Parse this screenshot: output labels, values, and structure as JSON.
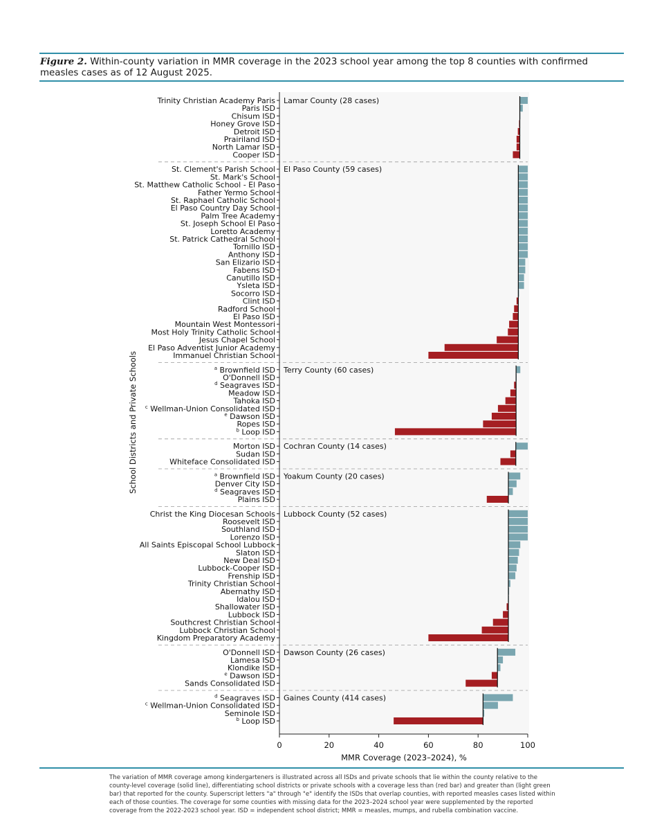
{
  "caption": {
    "label": "Figure 2.",
    "text": "Within-county variation in MMR coverage in the 2023 school year among the top 8 counties with confirmed measles cases as of 12 August 2025."
  },
  "footnote": "The variation of MMR coverage among kindergarteners is illustrated across all ISDs and private schools that lie within the county relative to the county-level coverage (solid line), differentiating school districts or private schools with a coverage less than (red bar) and greater than (light green bar) that reported for the county. Superscript letters \"a\" through \"e\" identify the ISDs that overlap counties, with reported measles cases listed within each of those counties. The coverage for some counties with missing data for the 2023–2024 school year were supplemented by the reported coverage from the 2022-2023 school year. ISD = independent school district; MMR = measles, mumps, and rubella combination vaccine.",
  "colors": {
    "above": "#7aa6b0",
    "below": "#a51e22",
    "county_line": "#111111",
    "separator": "#9a9a9a"
  },
  "chart_data": {
    "type": "bar",
    "orientation": "horizontal",
    "xlabel": "MMR Coverage (2023–2024), %",
    "ylabel": "School Districts and Private Schools",
    "xlim": [
      0,
      100
    ],
    "xticks": [
      0,
      20,
      40,
      60,
      80,
      100
    ],
    "groups": [
      {
        "county": "Lamar County (28 cases)",
        "county_coverage": 96.8,
        "rows": [
          {
            "label": "Trinity Christian Academy Paris",
            "value": 100
          },
          {
            "label": "Paris ISD",
            "value": 98
          },
          {
            "label": "Chisum ISD",
            "value": 97
          },
          {
            "label": "Honey Grove ISD",
            "value": 96.5
          },
          {
            "label": "Detroit ISD",
            "value": 96
          },
          {
            "label": "Prairiland ISD",
            "value": 95.5
          },
          {
            "label": "North Lamar ISD",
            "value": 95.5
          },
          {
            "label": "Cooper ISD",
            "value": 94
          }
        ]
      },
      {
        "county": "El Paso County (59 cases)",
        "county_coverage": 96.2,
        "rows": [
          {
            "label": "St. Clement's Parish School",
            "value": 100
          },
          {
            "label": "St. Mark's School",
            "value": 100
          },
          {
            "label": "St. Matthew Catholic School - El Paso",
            "value": 100
          },
          {
            "label": "Father Yermo School",
            "value": 100
          },
          {
            "label": "St. Raphael Catholic School",
            "value": 100
          },
          {
            "label": "El Paso Country Day School",
            "value": 100
          },
          {
            "label": "Palm Tree Academy",
            "value": 100
          },
          {
            "label": "St. Joseph School El Paso",
            "value": 100
          },
          {
            "label": "Loretto Academy",
            "value": 100
          },
          {
            "label": "St. Patrick Cathedral School",
            "value": 100
          },
          {
            "label": "Tornillo ISD",
            "value": 100
          },
          {
            "label": "Anthony ISD",
            "value": 100
          },
          {
            "label": "San Elizario ISD",
            "value": 99
          },
          {
            "label": "Fabens ISD",
            "value": 99
          },
          {
            "label": "Canutillo ISD",
            "value": 98.5
          },
          {
            "label": "Ysleta ISD",
            "value": 98.5
          },
          {
            "label": "Socorro ISD",
            "value": 96.5
          },
          {
            "label": "Clint ISD",
            "value": 95.5
          },
          {
            "label": "Radford School",
            "value": 94.5
          },
          {
            "label": "El Paso ISD",
            "value": 94
          },
          {
            "label": "Mountain West Montessori",
            "value": 92.5
          },
          {
            "label": "Most Holy Trinity Catholic School",
            "value": 92
          },
          {
            "label": "Jesus Chapel School",
            "value": 87.5
          },
          {
            "label": "El Paso Adventist Junior Academy",
            "value": 66.5
          },
          {
            "label": "Immanuel Christian School",
            "value": 60
          }
        ]
      },
      {
        "county": "Terry County (60 cases)",
        "county_coverage": 95.3,
        "rows": [
          {
            "label": "Brownfield ISD",
            "sup": "a",
            "value": 97
          },
          {
            "label": "O'Donnell ISD",
            "value": 95.5
          },
          {
            "label": "Seagraves ISD",
            "sup": "d",
            "value": 94.5
          },
          {
            "label": "Meadow ISD",
            "value": 93
          },
          {
            "label": "Tahoka ISD",
            "value": 91
          },
          {
            "label": "Wellman-Union Consolidated ISD",
            "sup": "c",
            "value": 88
          },
          {
            "label": "Dawson ISD",
            "sup": "e",
            "value": 85.5
          },
          {
            "label": "Ropes ISD",
            "value": 82
          },
          {
            "label": "Loop ISD",
            "sup": "b",
            "value": 46.5
          }
        ]
      },
      {
        "county": "Cochran County (14 cases)",
        "county_coverage": 95.2,
        "rows": [
          {
            "label": "Morton ISD",
            "value": 100
          },
          {
            "label": "Sudan ISD",
            "value": 93
          },
          {
            "label": "Whiteface Consolidated ISD",
            "value": 89
          }
        ]
      },
      {
        "county": "Yoakum County (20 cases)",
        "county_coverage": 92.2,
        "rows": [
          {
            "label": "Brownfield ISD",
            "sup": "a",
            "value": 97
          },
          {
            "label": "Denver City ISD",
            "value": 95.5
          },
          {
            "label": "Seagraves ISD",
            "sup": "d",
            "value": 94
          },
          {
            "label": "Plains ISD",
            "value": 83.5
          }
        ]
      },
      {
        "county": "Lubbock County (52 cases)",
        "county_coverage": 92.2,
        "rows": [
          {
            "label": "Christ the King Diocesan Schools",
            "value": 100
          },
          {
            "label": "Roosevelt ISD",
            "value": 100
          },
          {
            "label": "Southland ISD",
            "value": 100
          },
          {
            "label": "Lorenzo ISD",
            "value": 100
          },
          {
            "label": "All Saints Episcopal School Lubbock",
            "value": 97
          },
          {
            "label": "Slaton ISD",
            "value": 96.5
          },
          {
            "label": "New Deal ISD",
            "value": 96
          },
          {
            "label": "Lubbock-Cooper ISD",
            "value": 95.5
          },
          {
            "label": "Frenship ISD",
            "value": 95
          },
          {
            "label": "Trinity Christian School",
            "value": 93
          },
          {
            "label": "Abernathy ISD",
            "value": 92.5
          },
          {
            "label": "Idalou ISD",
            "value": 92.3
          },
          {
            "label": "Shallowater ISD",
            "value": 91.5
          },
          {
            "label": "Lubbock ISD",
            "value": 90
          },
          {
            "label": "Southcrest Christian School",
            "value": 86
          },
          {
            "label": "Lubbock Christian School",
            "value": 81.5
          },
          {
            "label": "Kingdom Preparatory Academy",
            "value": 60
          }
        ]
      },
      {
        "county": "Dawson County (26 cases)",
        "county_coverage": 87.8,
        "rows": [
          {
            "label": "O'Donnell ISD",
            "value": 95
          },
          {
            "label": "Lamesa ISD",
            "value": 90
          },
          {
            "label": "Klondike ISD",
            "value": 89
          },
          {
            "label": "Dawson ISD",
            "sup": "e",
            "value": 85.5
          },
          {
            "label": "Sands Consolidated ISD",
            "value": 75
          }
        ]
      },
      {
        "county": "Gaines County (414 cases)",
        "county_coverage": 82,
        "rows": [
          {
            "label": "Seagraves ISD",
            "sup": "d",
            "value": 94
          },
          {
            "label": "Wellman-Union Consolidated ISD",
            "sup": "c",
            "value": 88
          },
          {
            "label": "Seminole ISD",
            "value": 82.5
          },
          {
            "label": "Loop ISD",
            "sup": "b",
            "value": 46
          }
        ]
      }
    ]
  }
}
